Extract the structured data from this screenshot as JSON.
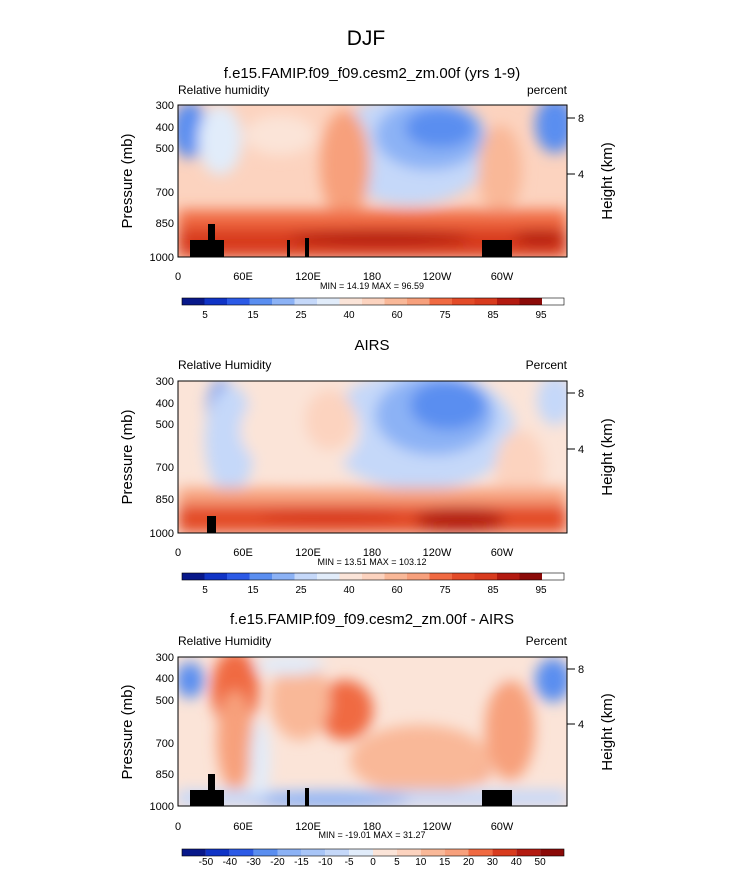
{
  "figure_title": "DJF",
  "chart_data": [
    {
      "type": "heatmap",
      "title": "f.e15.FAMIP.f09_f09.cesm2_zm.00f (yrs 1-9)",
      "left_label": "Relative humidity",
      "right_label": "percent",
      "ylabel": "Pressure (mb)",
      "y2label": "Height (km)",
      "y_ticks": [
        "300",
        "400",
        "500",
        "700",
        "850",
        "1000"
      ],
      "y2_ticks": [
        "8",
        "4"
      ],
      "x_ticks": [
        "0",
        "60E",
        "120E",
        "180",
        "120W",
        "60W"
      ],
      "minmax": "MIN = 14.19  MAX = 96.59",
      "cbar_labels": [
        "5",
        "15",
        "25",
        "40",
        "60",
        "75",
        "85",
        "95"
      ]
    },
    {
      "type": "heatmap",
      "title": "AIRS",
      "left_label": "Relative Humidity",
      "right_label": "Percent",
      "ylabel": "Pressure (mb)",
      "y2label": "Height (km)",
      "y_ticks": [
        "300",
        "400",
        "500",
        "700",
        "850",
        "1000"
      ],
      "y2_ticks": [
        "8",
        "4"
      ],
      "x_ticks": [
        "0",
        "60E",
        "120E",
        "180",
        "120W",
        "60W"
      ],
      "minmax": "MIN = 13.51  MAX = 103.12",
      "cbar_labels": [
        "5",
        "15",
        "25",
        "40",
        "60",
        "75",
        "85",
        "95"
      ]
    },
    {
      "type": "heatmap",
      "title": "f.e15.FAMIP.f09_f09.cesm2_zm.00f - AIRS",
      "left_label": "Relative Humidity",
      "right_label": "Percent",
      "ylabel": "Pressure (mb)",
      "y2label": "Height (km)",
      "y_ticks": [
        "300",
        "400",
        "500",
        "700",
        "850",
        "1000"
      ],
      "y2_ticks": [
        "8",
        "4"
      ],
      "x_ticks": [
        "0",
        "60E",
        "120E",
        "180",
        "120W",
        "60W"
      ],
      "minmax": "MIN = -19.01  MAX = 31.27",
      "cbar_labels": [
        "-50",
        "-40",
        "-30",
        "-20",
        "-15",
        "-10",
        "-5",
        "0",
        "5",
        "10",
        "15",
        "20",
        "30",
        "40",
        "50"
      ]
    }
  ]
}
